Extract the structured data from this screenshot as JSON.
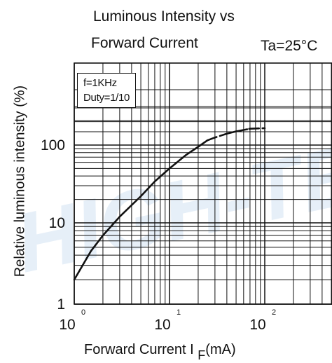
{
  "title_lines": [
    "Luminous Intensity vs",
    "Forward Current"
  ],
  "condition": "Ta=25°C",
  "watermark": "HIGH-TE",
  "legend": [
    "f=1KHz",
    "Duty=1/10"
  ],
  "chart_data": {
    "type": "line",
    "title": "Luminous Intensity vs Forward Current",
    "xlabel": "Forward Current I",
    "xlabel_sub": "F",
    "xlabel_unit": "(mA)",
    "ylabel": "Relative luminous intensity   (%)",
    "x_scale": "log",
    "y_scale": "log",
    "xlim": [
      1,
      100
    ],
    "ylim": [
      1,
      300
    ],
    "grid": true,
    "x_ticks": [
      {
        "value": 1,
        "base": "10",
        "exp": "0"
      },
      {
        "value": 10,
        "base": "10",
        "exp": "1"
      },
      {
        "value": 100,
        "base": "10",
        "exp": "2"
      }
    ],
    "y_ticks": [
      {
        "value": 1,
        "label": "1"
      },
      {
        "value": 10,
        "label": "10"
      },
      {
        "value": 100,
        "label": "100"
      }
    ],
    "series": [
      {
        "x": [
          1,
          1.5,
          2,
          3,
          5,
          7,
          10,
          15,
          20,
          25,
          30,
          40,
          50,
          70,
          100
        ],
        "y": [
          2,
          4.5,
          7,
          12,
          22,
          34,
          50,
          75,
          95,
          115,
          125,
          140,
          150,
          162,
          165
        ],
        "dash_gap": [
          25,
          30
        ]
      }
    ]
  }
}
